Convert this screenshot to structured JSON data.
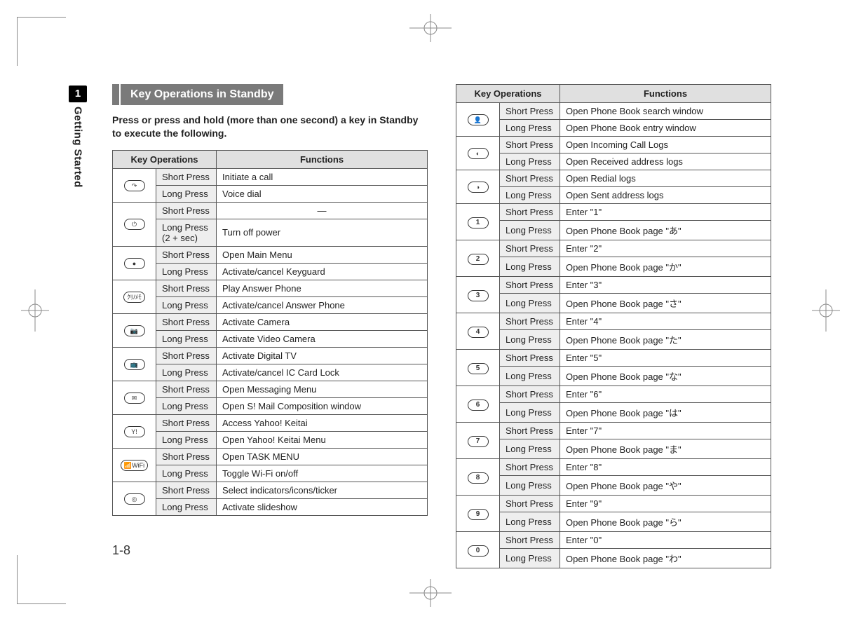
{
  "sidebar": {
    "chapter_num": "1",
    "chapter_title": "Getting Started"
  },
  "page_number": "1-8",
  "heading": "Key Operations in Standby",
  "intro": "Press or press and hold (more than one second) a key in Standby to execute the following.",
  "headers": {
    "ops": "Key Operations",
    "func": "Functions"
  },
  "press": {
    "short": "Short Press",
    "long": "Long Press",
    "long2": "Long Press (2 + sec)"
  },
  "left_rows": [
    {
      "icon": "↷",
      "name": "call-key",
      "short": "Initiate a call",
      "long": "Voice dial"
    },
    {
      "icon": "⏻",
      "name": "power-key",
      "short": "—",
      "short_center": true,
      "long_label": "long2",
      "long": "Turn off power"
    },
    {
      "icon": "●",
      "name": "center-key",
      "short": "Open Main Menu",
      "long": "Activate/cancel Keyguard"
    },
    {
      "icon": "ｸﾘ/ﾒﾓ",
      "name": "clear-memo-key",
      "short": "Play Answer Phone",
      "long": "Activate/cancel Answer Phone"
    },
    {
      "icon": "📷",
      "name": "camera-key",
      "short": "Activate Camera",
      "long": "Activate Video Camera"
    },
    {
      "icon": "📺",
      "name": "tv-key",
      "short": "Activate Digital TV",
      "long": "Activate/cancel IC Card Lock"
    },
    {
      "icon": "✉",
      "name": "mail-key",
      "short": "Open Messaging Menu",
      "long": "Open S! Mail Composition window"
    },
    {
      "icon": "Y!",
      "name": "yahoo-key",
      "short": "Access Yahoo! Keitai",
      "long": "Open Yahoo! Keitai Menu"
    },
    {
      "icon": "📶WiFi",
      "name": "wifi-key",
      "short": "Open TASK MENU",
      "long": "Toggle Wi-Fi on/off"
    },
    {
      "icon": "◎",
      "name": "indicator-key",
      "short": "Select indicators/icons/ticker",
      "long": "Activate slideshow"
    }
  ],
  "right_rows": [
    {
      "icon": "👤",
      "name": "phonebook-key",
      "short": "Open Phone Book search window",
      "long": "Open Phone Book entry window"
    },
    {
      "icon": "◐",
      "name": "left-key",
      "short": "Open Incoming Call Logs",
      "long": "Open Received address logs"
    },
    {
      "icon": "◑",
      "name": "right-key",
      "short": "Open Redial logs",
      "long": "Open Sent address logs"
    },
    {
      "icon": "1",
      "name": "key-1",
      "num": true,
      "short": "Enter \"1\"",
      "long": "Open Phone Book page \"あ\""
    },
    {
      "icon": "2",
      "name": "key-2",
      "num": true,
      "short": "Enter \"2\"",
      "long": "Open Phone Book page \"か\""
    },
    {
      "icon": "3",
      "name": "key-3",
      "num": true,
      "short": "Enter \"3\"",
      "long": "Open Phone Book page \"さ\""
    },
    {
      "icon": "4",
      "name": "key-4",
      "num": true,
      "short": "Enter \"4\"",
      "long": "Open Phone Book page \"た\""
    },
    {
      "icon": "5",
      "name": "key-5",
      "num": true,
      "short": "Enter \"5\"",
      "long": "Open Phone Book page \"な\""
    },
    {
      "icon": "6",
      "name": "key-6",
      "num": true,
      "short": "Enter \"6\"",
      "long": "Open Phone Book page \"は\""
    },
    {
      "icon": "7",
      "name": "key-7",
      "num": true,
      "short": "Enter \"7\"",
      "long": "Open Phone Book page \"ま\""
    },
    {
      "icon": "8",
      "name": "key-8",
      "num": true,
      "short": "Enter \"8\"",
      "long": "Open Phone Book page \"や\""
    },
    {
      "icon": "9",
      "name": "key-9",
      "num": true,
      "short": "Enter \"9\"",
      "long": "Open Phone Book page \"ら\""
    },
    {
      "icon": "0",
      "name": "key-0",
      "num": true,
      "short": "Enter \"0\"",
      "long": "Open Phone Book page \"わ\""
    }
  ]
}
